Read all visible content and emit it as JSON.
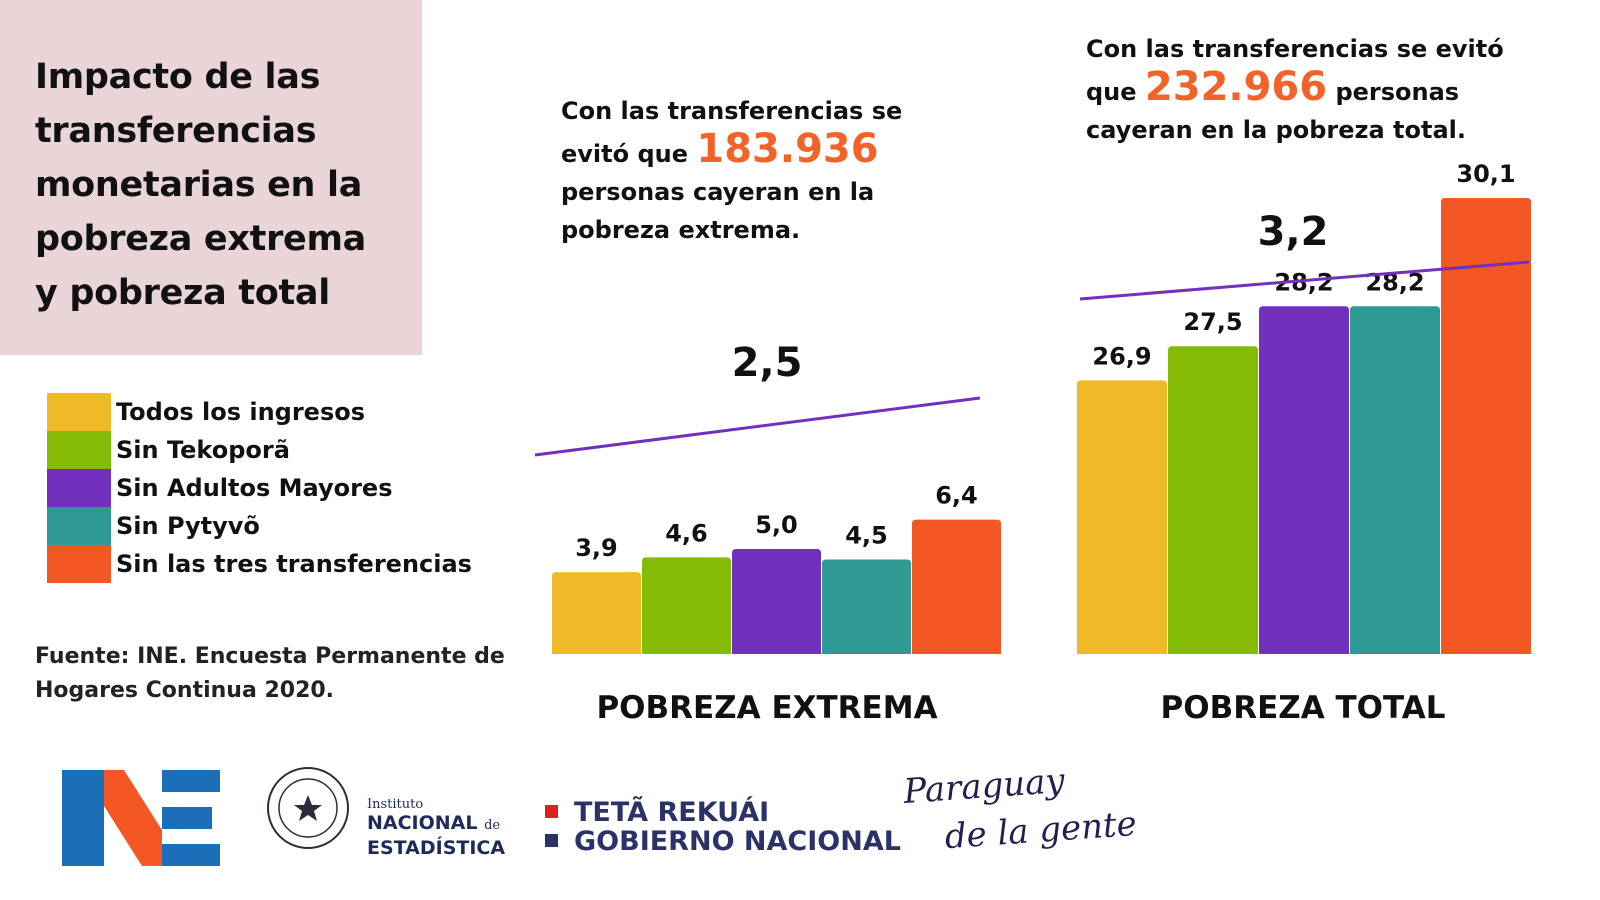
{
  "title": "Impacto de las transferencias monetarias en la pobreza extrema y pobreza total",
  "legend": [
    {
      "label": "Todos los ingresos",
      "color": "#f0b926"
    },
    {
      "label": "Sin Tekoporã",
      "color": "#84bb07"
    },
    {
      "label": "Sin Adultos Mayores",
      "color": "#7230bf"
    },
    {
      "label": "Sin Pytyvõ",
      "color": "#2f9994"
    },
    {
      "label": "Sin las tres transferencias",
      "color": "#f25724"
    }
  ],
  "source": "Fuente: INE. Encuesta Permanente de Hogares Continua 2020.",
  "headlines": {
    "left": {
      "pre": "Con las transferencias se evitó que ",
      "number": "183.936",
      "post": " personas cayeran en la pobreza extrema."
    },
    "right": {
      "pre": "Con las transferencias se evitó que ",
      "number": "232.966",
      "post": " personas cayeran en la pobreza total."
    }
  },
  "chart_data": [
    {
      "type": "bar",
      "title": "POBREZA EXTREMA",
      "categories": [
        "Todos los ingresos",
        "Sin Tekoporã",
        "Sin Adultos Mayores",
        "Sin Pytyvõ",
        "Sin las tres transferencias"
      ],
      "values": [
        3.9,
        4.6,
        5.0,
        4.5,
        6.4
      ],
      "value_labels": [
        "3,9",
        "4,6",
        "5,0",
        "4,5",
        "6,4"
      ],
      "difference_label": "2,5",
      "colors": [
        "#f0b926",
        "#84bb07",
        "#7230bf",
        "#2f9994",
        "#f25724"
      ],
      "trend_color": "#7230bf"
    },
    {
      "type": "bar",
      "title": "POBREZA TOTAL",
      "categories": [
        "Todos los ingresos",
        "Sin Tekoporã",
        "Sin Adultos Mayores",
        "Sin Pytyvõ",
        "Sin las tres transferencias"
      ],
      "values": [
        26.9,
        27.5,
        28.2,
        28.2,
        30.1
      ],
      "value_labels": [
        "26,9",
        "27,5",
        "28,2",
        "28,2",
        "30,1"
      ],
      "difference_label": "3,2",
      "colors": [
        "#f0b926",
        "#84bb07",
        "#7230bf",
        "#2f9994",
        "#f25724"
      ],
      "trend_color": "#7230bf"
    }
  ],
  "logos": {
    "ine": {
      "mark": "INE",
      "small": "Instituto",
      "line1": "NACIONAL",
      "de": "de",
      "line2": "ESTADÍSTICA",
      "seal": "seal-icon"
    },
    "gobierno": {
      "line1": "TETÃ REKUÁI",
      "line2": "GOBIERNO NACIONAL",
      "colors": [
        "#e02020",
        "#2a3268"
      ]
    },
    "paraguay": {
      "line1": "Paraguay",
      "line2": "de la gente"
    }
  }
}
